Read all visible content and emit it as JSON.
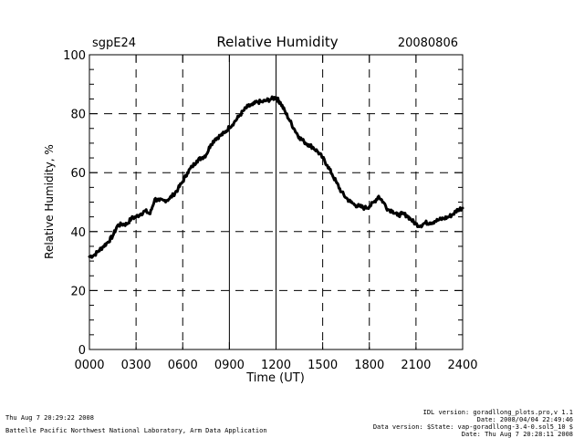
{
  "chart_data": {
    "type": "line",
    "title": "Relative Humidity",
    "station": "sgpE24",
    "date": "20080806",
    "xlabel": "Time (UT)",
    "ylabel": "Relative Humidity, %",
    "xlim": [
      0,
      2400
    ],
    "ylim": [
      0,
      100
    ],
    "x_ticks": [
      "0000",
      "0300",
      "0600",
      "0900",
      "1200",
      "1500",
      "1800",
      "2100",
      "2400"
    ],
    "y_ticks": [
      "0",
      "20",
      "40",
      "60",
      "80",
      "100"
    ],
    "grid": "dashed",
    "series": [
      {
        "name": "Relative Humidity",
        "x": [
          0,
          30,
          60,
          90,
          120,
          150,
          180,
          210,
          240,
          270,
          300,
          330,
          360,
          390,
          420,
          450,
          480,
          510,
          540,
          570,
          600,
          630,
          660,
          690,
          720,
          750,
          780,
          810,
          840,
          870,
          900,
          930,
          960,
          990,
          1020,
          1050,
          1080,
          1110,
          1140,
          1170,
          1200,
          1215,
          1230,
          1260,
          1290,
          1320,
          1350,
          1380,
          1410,
          1440,
          1470,
          1500,
          1530,
          1560,
          1590,
          1620,
          1650,
          1680,
          1710,
          1740,
          1770,
          1800,
          1830,
          1860,
          1890,
          1920,
          1950,
          1980,
          2010,
          2040,
          2070,
          2100,
          2130,
          2160,
          2190,
          2220,
          2250,
          2280,
          2310,
          2340,
          2370,
          2400
        ],
        "values": [
          31.5,
          32,
          33.5,
          35,
          36.5,
          38.5,
          42,
          42.5,
          42.5,
          44.5,
          45,
          46,
          47,
          46,
          51,
          50.5,
          50.5,
          51,
          52.5,
          54.5,
          57,
          60,
          62,
          64,
          65,
          66,
          69.5,
          71.5,
          72.5,
          73.5,
          75.5,
          77,
          79,
          81,
          82.5,
          83,
          84,
          84,
          84.5,
          85,
          85.5,
          84.5,
          83.5,
          80.5,
          77.5,
          74.5,
          72,
          70.5,
          69.5,
          68.5,
          67,
          65,
          62.5,
          59.5,
          56.5,
          53.5,
          51.5,
          50,
          49,
          48.5,
          48,
          48.5,
          50,
          52,
          50,
          47.5,
          47,
          45.5,
          46,
          45.5,
          44,
          42.5,
          42,
          43,
          43,
          43.5,
          44,
          44.5,
          45,
          46,
          47.5,
          48
        ]
      }
    ]
  },
  "footer": {
    "left": [
      "Thu Aug  7 20:29:22 2008",
      "Battelle Pacific Northwest National Laboratory, Arm Data Application"
    ],
    "right": [
      "IDL version: goradllong_plots.pro,v 1.1",
      "Date: 2008/04/04 22:49:46",
      "Data version: $State: vap-goradllong-3.4-0.sol5_10 $",
      "Date: Thu Aug  7 20:28:11 2008"
    ]
  }
}
